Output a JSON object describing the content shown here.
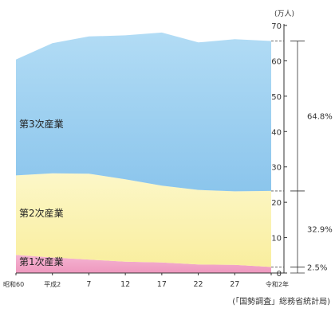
{
  "chart_data": {
    "type": "area",
    "stacked": true,
    "x": [
      "昭和60",
      "平成2",
      "7",
      "12",
      "17",
      "22",
      "27",
      "令和2年"
    ],
    "series": [
      {
        "name": "第1次産業",
        "values": [
          5.1,
          4.4,
          3.8,
          3.2,
          3.0,
          2.4,
          2.3,
          1.7
        ],
        "color": "#f2a7c9"
      },
      {
        "name": "第2次産業",
        "values": [
          22.5,
          23.8,
          24.3,
          23.3,
          21.7,
          21.1,
          20.8,
          21.5
        ],
        "color": "#fbf3b0"
      },
      {
        "name": "第3次産業",
        "values": [
          32.8,
          36.8,
          38.8,
          40.7,
          43.3,
          41.7,
          43.0,
          42.4
        ],
        "color": "#9ecfee"
      }
    ],
    "yunit": "(万人)",
    "yticks": [
      0,
      10,
      20,
      30,
      40,
      50,
      60,
      70
    ],
    "ylim": [
      0,
      70
    ],
    "grid": false,
    "legend_placement": "inside",
    "share_labels": [
      "64.8%",
      "32.9%",
      "2.5%"
    ],
    "source": "(「国勢調査」総務省統計局)"
  }
}
